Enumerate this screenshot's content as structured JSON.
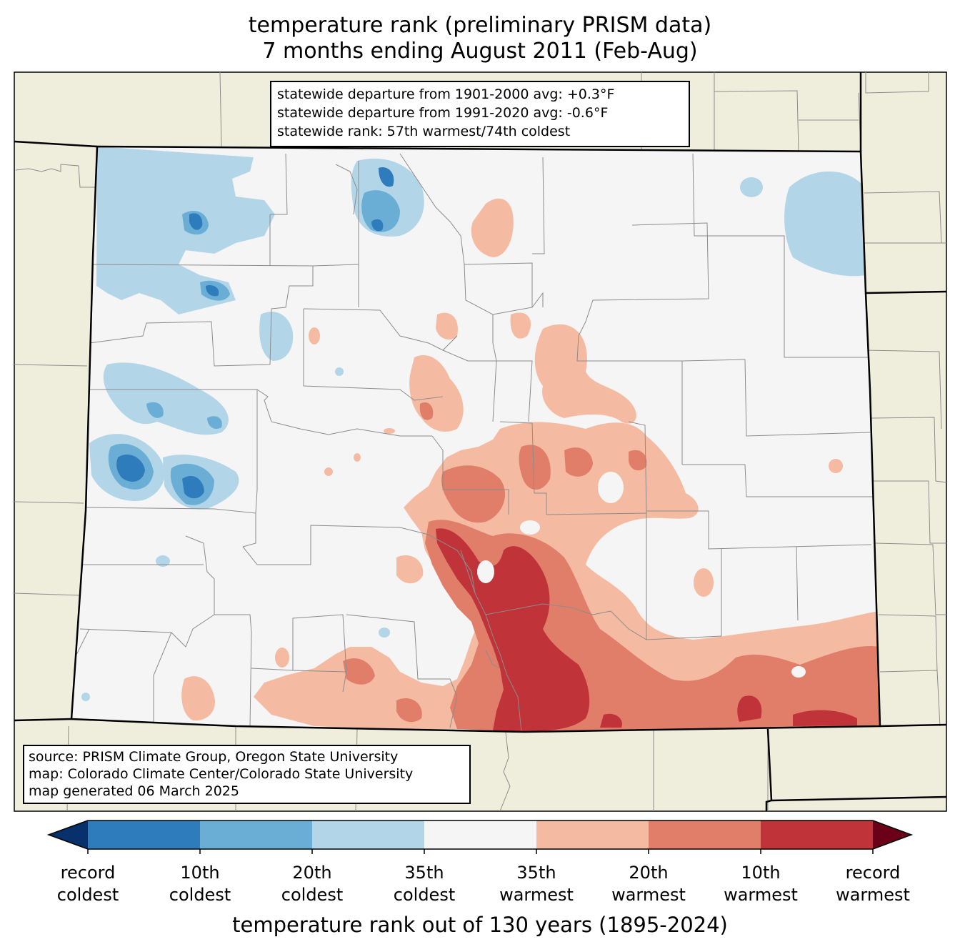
{
  "title": {
    "line1": "temperature rank (preliminary PRISM data)",
    "line2": "7 months ending August 2011 (Feb-Aug)"
  },
  "stats": [
    "statewide departure from 1901-2000 avg: +0.3°F",
    "statewide departure from 1991-2020 avg: -0.6°F",
    "statewide rank: 57th warmest/74th coldest"
  ],
  "source": [
    "source: PRISM Climate Group, Oregon State University",
    "map: Colorado Climate Center/Colorado State University",
    "map generated 06 March 2025"
  ],
  "colorbar": {
    "colors": {
      "record_cold_extend": "#08306b",
      "bin_1": "#2e7cbc",
      "bin_2": "#6aaed6",
      "bin_3": "#b3d5e8",
      "bin_4": "#f5f5f5",
      "bin_5": "#f5bba2",
      "bin_6": "#e17e69",
      "bin_7": "#c03338",
      "record_warm_extend": "#6b0019"
    },
    "ticks": [
      {
        "line1": "record",
        "line2": "coldest"
      },
      {
        "line1": "10th",
        "line2": "coldest"
      },
      {
        "line1": "20th",
        "line2": "coldest"
      },
      {
        "line1": "35th",
        "line2": "coldest"
      },
      {
        "line1": "35th",
        "line2": "warmest"
      },
      {
        "line1": "20th",
        "line2": "warmest"
      },
      {
        "line1": "10th",
        "line2": "warmest"
      },
      {
        "line1": "record",
        "line2": "warmest"
      }
    ],
    "label": "temperature rank out of 130 years (1895-2024)"
  },
  "map_colors": {
    "neighbor_fill": "#efeedc",
    "state_fill": "#f5f5f5",
    "county_line": "#8c8c8c",
    "border_line": "#000000"
  }
}
